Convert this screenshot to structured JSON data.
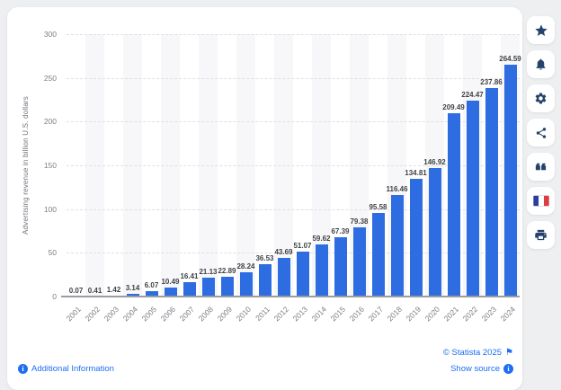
{
  "chart_data": {
    "type": "bar",
    "title": "",
    "xlabel": "",
    "ylabel": "Advertising revenue in billion U.S. dollars",
    "categories": [
      "2001",
      "2002",
      "2003",
      "2004",
      "2005",
      "2006",
      "2007",
      "2008",
      "2009",
      "2010",
      "2011",
      "2012",
      "2013",
      "2014",
      "2015",
      "2016",
      "2017",
      "2018",
      "2019",
      "2020",
      "2021",
      "2022",
      "2023",
      "2024"
    ],
    "values": [
      0.07,
      0.41,
      1.42,
      3.14,
      6.07,
      10.49,
      16.41,
      21.13,
      22.89,
      28.24,
      36.53,
      43.69,
      51.07,
      59.62,
      67.39,
      79.38,
      95.58,
      116.46,
      134.81,
      146.92,
      209.49,
      224.47,
      237.86,
      264.59
    ],
    "value_labels": [
      "0.07",
      "0.41",
      "1.42",
      "3.14",
      "6.07",
      "10.49",
      "16.41",
      "21.13",
      "22.89",
      "28.24",
      "36.53",
      "43.69",
      "51.07",
      "59.62",
      "67.39",
      "79.38",
      "95.58",
      "116.46",
      "134.81",
      "146.92",
      "209.49",
      "224.47",
      "237.86",
      "264.59"
    ],
    "ylim": [
      0,
      300
    ],
    "yticks": [
      0,
      50,
      100,
      150,
      200,
      250,
      300
    ],
    "grid": true,
    "legend": false,
    "bar_color": "#2e6de1"
  },
  "footer": {
    "additional_information": "Additional Information",
    "copyright": "© Statista 2025",
    "show_source": "Show source",
    "flag_glyph": "⚑",
    "info_glyph": "i"
  },
  "toolbar": {
    "icons": [
      "favorite-star",
      "notifications-bell",
      "settings-gear",
      "share",
      "cite-quote",
      "language-french-flag",
      "print"
    ]
  },
  "colors": {
    "accent_blue": "#2e6de1",
    "link_blue": "#1d6ff2",
    "icon_navy": "#23436b",
    "page_background": "#edeff1",
    "stripe": "#f7f7f9"
  }
}
